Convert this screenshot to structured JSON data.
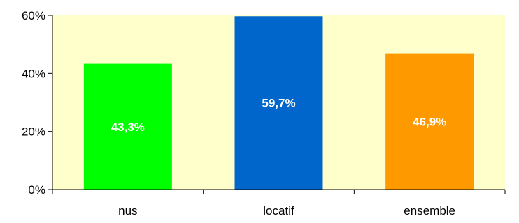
{
  "chart_data": {
    "type": "bar",
    "categories": [
      "nus",
      "locatif",
      "ensemble"
    ],
    "values": [
      43.3,
      59.7,
      46.9
    ],
    "value_labels": [
      "43,3%",
      "59,7%",
      "46,9%"
    ],
    "bar_colors": [
      "#00ff00",
      "#0066cc",
      "#ff9900"
    ],
    "plot_background": "#ffffcc",
    "ylim": [
      0,
      60
    ],
    "yticks": [
      0,
      20,
      40,
      60
    ],
    "ytick_labels": [
      "0%",
      "20%",
      "40%",
      "60%"
    ],
    "title": "",
    "xlabel": "",
    "ylabel": "",
    "grid": false,
    "legend": false
  }
}
